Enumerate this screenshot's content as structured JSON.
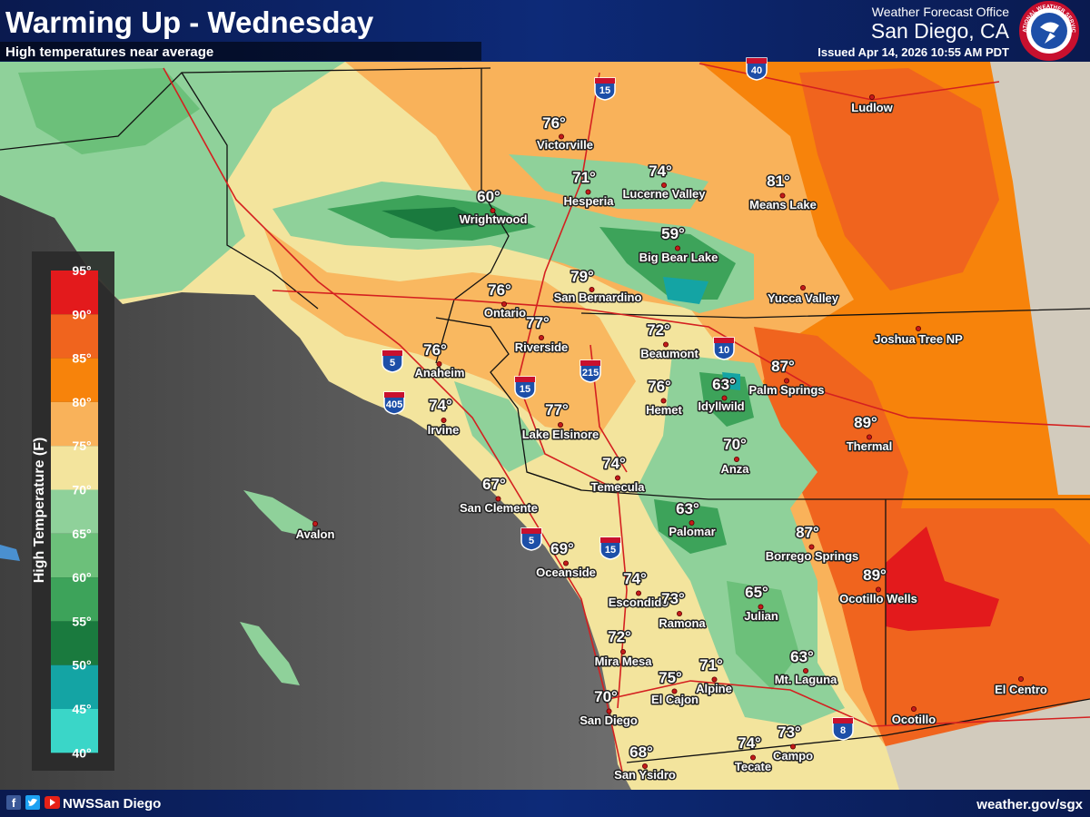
{
  "header": {
    "title": "Warming Up - Wednesday",
    "subtitle": "High temperatures near average",
    "office": "Weather Forecast Office",
    "location": "San Diego, CA",
    "issued": "Issued Apr 14, 2026 10:55 AM PDT",
    "seal": "NATIONAL WEATHER SERVICE"
  },
  "legend": {
    "title": "High Temperature (F)",
    "ticks": [
      "95°",
      "90°",
      "85°",
      "80°",
      "75°",
      "70°",
      "65°",
      "60°",
      "55°",
      "50°",
      "45°",
      "40°"
    ]
  },
  "cities": [
    {
      "name": "Victorville",
      "temp": "76°"
    },
    {
      "name": "Hesperia",
      "temp": "71°"
    },
    {
      "name": "Lucerne Valley",
      "temp": "74°"
    },
    {
      "name": "Means Lake",
      "temp": "81°"
    },
    {
      "name": "Ludlow"
    },
    {
      "name": "Wrightwood",
      "temp": "60°"
    },
    {
      "name": "Big Bear Lake",
      "temp": "59°"
    },
    {
      "name": "San Bernardino",
      "temp": "79°"
    },
    {
      "name": "Yucca Valley"
    },
    {
      "name": "Ontario",
      "temp": "76°"
    },
    {
      "name": "Riverside",
      "temp": "77°"
    },
    {
      "name": "Joshua Tree NP"
    },
    {
      "name": "Beaumont",
      "temp": "72°"
    },
    {
      "name": "Anaheim",
      "temp": "76°"
    },
    {
      "name": "Irvine",
      "temp": "74°"
    },
    {
      "name": "Palm Springs",
      "temp": "87°"
    },
    {
      "name": "Idyllwild",
      "temp": "63°"
    },
    {
      "name": "Hemet",
      "temp": "76°"
    },
    {
      "name": "Lake Elsinore",
      "temp": "77°"
    },
    {
      "name": "Thermal",
      "temp": "89°"
    },
    {
      "name": "Anza",
      "temp": "70°"
    },
    {
      "name": "Temecula",
      "temp": "74°"
    },
    {
      "name": "San Clemente",
      "temp": "67°"
    },
    {
      "name": "Avalon"
    },
    {
      "name": "Palomar",
      "temp": "63°"
    },
    {
      "name": "Borrego Springs",
      "temp": "87°"
    },
    {
      "name": "Oceanside",
      "temp": "69°"
    },
    {
      "name": "Escondido",
      "temp": "74°"
    },
    {
      "name": "Ramona",
      "temp": "73°"
    },
    {
      "name": "Ocotillo Wells",
      "temp": "89°"
    },
    {
      "name": "Julian",
      "temp": "65°"
    },
    {
      "name": "Mira Mesa",
      "temp": "72°"
    },
    {
      "name": "Mt. Laguna",
      "temp": "63°"
    },
    {
      "name": "El Cajon",
      "temp": "75°"
    },
    {
      "name": "Alpine",
      "temp": "71°"
    },
    {
      "name": "El Centro"
    },
    {
      "name": "San Diego",
      "temp": "70°"
    },
    {
      "name": "Ocotillo"
    },
    {
      "name": "Campo",
      "temp": "73°"
    },
    {
      "name": "Tecate",
      "temp": "74°"
    },
    {
      "name": "San Ysidro",
      "temp": "68°"
    }
  ],
  "highways": [
    "40",
    "15",
    "10",
    "5",
    "405",
    "15",
    "215",
    "5",
    "15",
    "8"
  ],
  "footer": {
    "handle": "NWSSan Diego",
    "url": "weather.gov/sgx"
  }
}
